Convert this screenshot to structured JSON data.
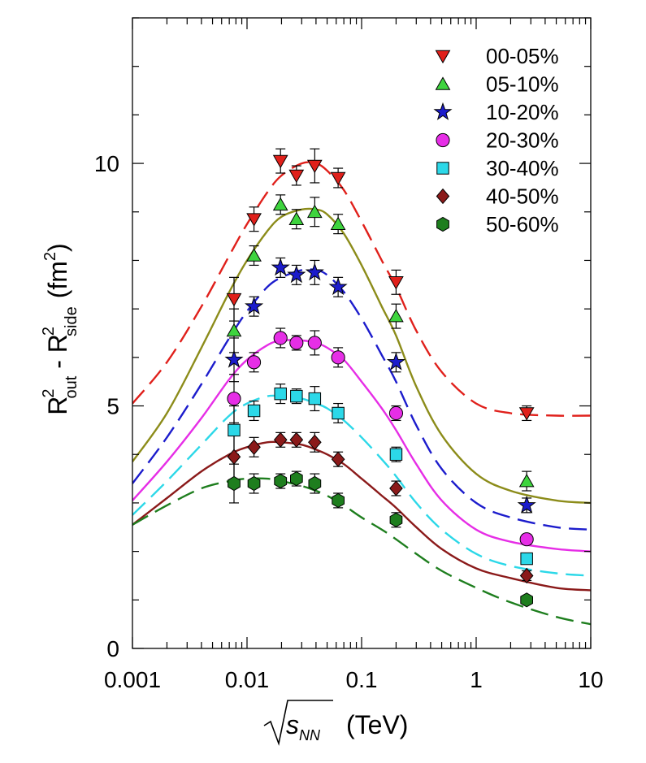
{
  "chart_data": {
    "type": "scatter",
    "xscale": "log",
    "xlim": [
      0.001,
      10
    ],
    "ylim": [
      0,
      13
    ],
    "x_ticks": [
      "0.001",
      "0.01",
      "0.1",
      "1",
      "10"
    ],
    "y_ticks": [
      "0",
      "5",
      "10"
    ],
    "ylabel": {
      "base1": "R",
      "sup1": "2",
      "sub1": "out",
      "minus": " - ",
      "base2": "R",
      "sup2": "2",
      "sub2": "side",
      "unit": "(fm",
      "unit_sup": "2",
      "unit_close": ")"
    },
    "xlabel": {
      "radical": "s",
      "sub": "NN",
      "unit": "(TeV)"
    },
    "legend_position": "top-right",
    "x": [
      0.0077,
      0.0115,
      0.0196,
      0.027,
      0.039,
      0.0624,
      0.2,
      2.76
    ],
    "series": [
      {
        "name": "00-05%",
        "marker": "triangle-down",
        "color": "#e0201b",
        "line_style": "dashed",
        "values": [
          7.2,
          8.85,
          10.05,
          9.75,
          9.95,
          9.7,
          7.55,
          4.85
        ],
        "errors": [
          0.45,
          0.25,
          0.25,
          0.2,
          0.35,
          0.2,
          0.25,
          0.15
        ]
      },
      {
        "name": "05-10%",
        "marker": "triangle-up",
        "color": "#3ed43e",
        "line_style": "solid",
        "values": [
          6.55,
          8.1,
          9.15,
          8.85,
          9.0,
          8.75,
          6.85,
          3.45
        ],
        "errors": [
          0.45,
          0.2,
          0.2,
          0.2,
          0.3,
          0.2,
          0.25,
          0.2
        ]
      },
      {
        "name": "10-20%",
        "marker": "star",
        "color": "#1c1ccc",
        "line_style": "dashed",
        "values": [
          5.95,
          7.05,
          7.85,
          7.7,
          7.75,
          7.45,
          5.9,
          2.95
        ],
        "errors": [
          0.45,
          0.2,
          0.2,
          0.2,
          0.25,
          0.2,
          0.2,
          0.15
        ]
      },
      {
        "name": "20-30%",
        "marker": "circle",
        "color": "#e62ee6",
        "line_style": "solid",
        "values": [
          5.15,
          5.9,
          6.4,
          6.3,
          6.3,
          6.0,
          4.85,
          2.25
        ],
        "errors": [
          0.5,
          0.2,
          0.2,
          0.15,
          0.25,
          0.2,
          0.15,
          0.1
        ]
      },
      {
        "name": "30-40%",
        "marker": "square",
        "color": "#2cd8e8",
        "line_style": "dashed",
        "values": [
          4.5,
          4.9,
          5.25,
          5.2,
          5.15,
          4.85,
          4.0,
          1.85
        ],
        "errors": [
          0.5,
          0.2,
          0.2,
          0.15,
          0.25,
          0.2,
          0.15,
          0.1
        ]
      },
      {
        "name": "40-50%",
        "marker": "diamond",
        "color": "#8b1a1a",
        "line_style": "solid",
        "values": [
          3.95,
          4.15,
          4.3,
          4.3,
          4.25,
          3.9,
          3.3,
          1.5
        ],
        "errors": [
          0.5,
          0.2,
          0.15,
          0.15,
          0.2,
          0.15,
          0.15,
          0.1
        ]
      },
      {
        "name": "50-60%",
        "marker": "hexagon",
        "color": "#1e7e1e",
        "line_style": "dashed",
        "values": [
          3.4,
          3.4,
          3.45,
          3.5,
          3.4,
          3.05,
          2.65,
          1.0
        ],
        "errors": [
          0.4,
          0.2,
          0.15,
          0.15,
          0.2,
          0.15,
          0.15,
          0.08
        ]
      }
    ],
    "fit_curves": [
      {
        "series": "00-05%",
        "color": "#e0201b",
        "line_style": "dashed",
        "x": [
          0.001,
          0.002,
          0.004,
          0.007,
          0.01,
          0.015,
          0.02,
          0.03,
          0.04,
          0.05,
          0.07,
          0.1,
          0.15,
          0.2,
          0.3,
          0.5,
          1,
          2,
          5,
          10
        ],
        "y": [
          5.05,
          5.9,
          7.05,
          8.1,
          8.75,
          9.4,
          9.75,
          10.0,
          10.0,
          9.85,
          9.45,
          8.8,
          8.0,
          7.45,
          6.55,
          5.7,
          5.05,
          4.85,
          4.8,
          4.8
        ]
      },
      {
        "series": "05-10%",
        "color": "#8c8c1a",
        "line_style": "solid",
        "x": [
          0.001,
          0.002,
          0.004,
          0.007,
          0.01,
          0.015,
          0.02,
          0.03,
          0.04,
          0.05,
          0.07,
          0.1,
          0.15,
          0.2,
          0.3,
          0.5,
          1,
          2,
          5,
          10
        ],
        "y": [
          3.85,
          4.85,
          6.2,
          7.35,
          8.0,
          8.6,
          8.9,
          9.05,
          9.05,
          8.95,
          8.55,
          7.9,
          7.05,
          6.45,
          5.4,
          4.4,
          3.6,
          3.25,
          3.05,
          3.0
        ]
      },
      {
        "series": "10-20%",
        "color": "#1c1ccc",
        "line_style": "dashed",
        "x": [
          0.001,
          0.002,
          0.004,
          0.007,
          0.01,
          0.015,
          0.02,
          0.03,
          0.04,
          0.05,
          0.07,
          0.1,
          0.15,
          0.2,
          0.3,
          0.5,
          1,
          2,
          5,
          10
        ],
        "y": [
          3.4,
          4.35,
          5.45,
          6.4,
          6.95,
          7.45,
          7.65,
          7.8,
          7.8,
          7.7,
          7.35,
          6.8,
          6.05,
          5.5,
          4.6,
          3.7,
          3.0,
          2.7,
          2.5,
          2.45
        ]
      },
      {
        "series": "20-30%",
        "color": "#e62ee6",
        "line_style": "solid",
        "x": [
          0.001,
          0.002,
          0.004,
          0.007,
          0.01,
          0.015,
          0.02,
          0.03,
          0.04,
          0.05,
          0.07,
          0.1,
          0.15,
          0.2,
          0.3,
          0.5,
          1,
          2,
          5,
          10
        ],
        "y": [
          3.05,
          3.85,
          4.75,
          5.55,
          5.95,
          6.25,
          6.35,
          6.35,
          6.3,
          6.2,
          5.95,
          5.5,
          4.95,
          4.5,
          3.8,
          3.05,
          2.45,
          2.2,
          2.05,
          2.0
        ]
      },
      {
        "series": "30-40%",
        "color": "#2cd8e8",
        "line_style": "dashed",
        "x": [
          0.001,
          0.002,
          0.004,
          0.007,
          0.01,
          0.015,
          0.02,
          0.03,
          0.04,
          0.05,
          0.07,
          0.1,
          0.15,
          0.2,
          0.3,
          0.5,
          1,
          2,
          5,
          10
        ],
        "y": [
          2.75,
          3.45,
          4.2,
          4.8,
          5.05,
          5.2,
          5.2,
          5.15,
          5.05,
          4.95,
          4.7,
          4.35,
          3.9,
          3.55,
          3.0,
          2.45,
          1.95,
          1.7,
          1.55,
          1.5
        ]
      },
      {
        "series": "40-50%",
        "color": "#8b1a1a",
        "line_style": "solid",
        "x": [
          0.001,
          0.002,
          0.004,
          0.007,
          0.01,
          0.015,
          0.02,
          0.03,
          0.04,
          0.05,
          0.07,
          0.1,
          0.15,
          0.2,
          0.3,
          0.5,
          1,
          2,
          5,
          10
        ],
        "y": [
          2.55,
          3.1,
          3.65,
          4.0,
          4.15,
          4.25,
          4.25,
          4.2,
          4.1,
          4.0,
          3.8,
          3.5,
          3.15,
          2.9,
          2.5,
          2.05,
          1.65,
          1.45,
          1.25,
          1.2
        ]
      },
      {
        "series": "50-60%",
        "color": "#1e7e1e",
        "line_style": "dashed",
        "x": [
          0.001,
          0.002,
          0.004,
          0.007,
          0.01,
          0.015,
          0.02,
          0.03,
          0.04,
          0.05,
          0.07,
          0.1,
          0.15,
          0.2,
          0.3,
          0.5,
          1,
          2,
          5,
          10
        ],
        "y": [
          2.55,
          2.95,
          3.3,
          3.45,
          3.5,
          3.5,
          3.45,
          3.35,
          3.25,
          3.15,
          2.95,
          2.7,
          2.45,
          2.25,
          1.95,
          1.6,
          1.25,
          0.95,
          0.65,
          0.5
        ]
      }
    ]
  }
}
